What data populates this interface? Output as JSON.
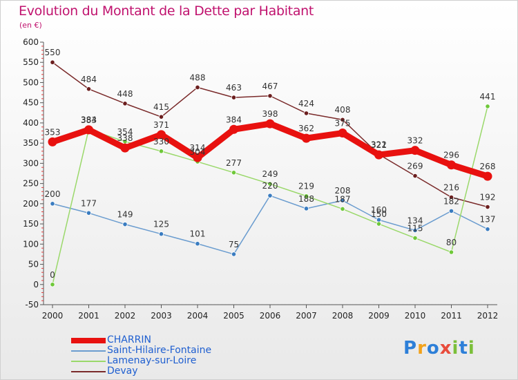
{
  "title": "Evolution du Montant de la Dette par Habitant",
  "unit": "(en €)",
  "logo": {
    "text": "Proxiti",
    "colors": [
      "#2d7fd8",
      "#f2a21b",
      "#2d7fd8",
      "#e84c3c",
      "#7bbf3a",
      "#2d7fd8",
      "#7bbf3a"
    ]
  },
  "chart_data": {
    "type": "line",
    "title": "Evolution du Montant de la Dette par Habitant",
    "ylabel": "(en €)",
    "xlabel": "",
    "x": [
      "2000",
      "2001",
      "2002",
      "2003",
      "2004",
      "2005",
      "2006",
      "2007",
      "2008",
      "2009",
      "2010",
      "2011",
      "2012"
    ],
    "ylim": [
      -50,
      600
    ],
    "yticks": [
      -50,
      0,
      50,
      100,
      150,
      200,
      250,
      300,
      350,
      400,
      450,
      500,
      550,
      600
    ],
    "grid": false,
    "legend_position": "bottom-left",
    "series": [
      {
        "name": "CHARRIN",
        "color": "#e8110f",
        "style": "thick",
        "values": [
          353,
          383,
          338,
          371,
          314,
          384,
          398,
          362,
          375,
          321,
          332,
          296,
          268
        ],
        "labels": [
          "353",
          "383",
          "338",
          "371",
          "314",
          "384",
          "398",
          "362",
          "375",
          "321",
          "332",
          "296",
          "268"
        ]
      },
      {
        "name": "Saint-Hilaire-Fontaine",
        "color": "#6a9ccf",
        "marker": "#3a7cc0",
        "style": "thin",
        "values": [
          200,
          177,
          149,
          125,
          101,
          75,
          220,
          188,
          208,
          160,
          134,
          182,
          137
        ],
        "labels": [
          "200",
          "177",
          "149",
          "125",
          "101",
          "75",
          "220",
          "188",
          "208",
          "160",
          "134",
          "182",
          "137"
        ]
      },
      {
        "name": "Lamenay-sur-Loire",
        "color": "#9ad86a",
        "marker": "#6fc83a",
        "style": "thin",
        "values": [
          0,
          384,
          354,
          330,
          304,
          277,
          249,
          219,
          187,
          150,
          115,
          80,
          441
        ],
        "labels": [
          "0",
          "384",
          "354",
          "330",
          "304",
          "277",
          "249",
          "219",
          "187",
          "150",
          "115",
          "80",
          "441"
        ]
      },
      {
        "name": "Devay",
        "color": "#7a2a2a",
        "marker": "#6b1e1e",
        "style": "thin",
        "values": [
          550,
          484,
          448,
          415,
          488,
          463,
          467,
          424,
          408,
          322,
          269,
          216,
          192
        ],
        "labels": [
          "550",
          "484",
          "448",
          "415",
          "488",
          "463",
          "467",
          "424",
          "408",
          "322",
          "269",
          "216",
          "192"
        ]
      }
    ]
  }
}
